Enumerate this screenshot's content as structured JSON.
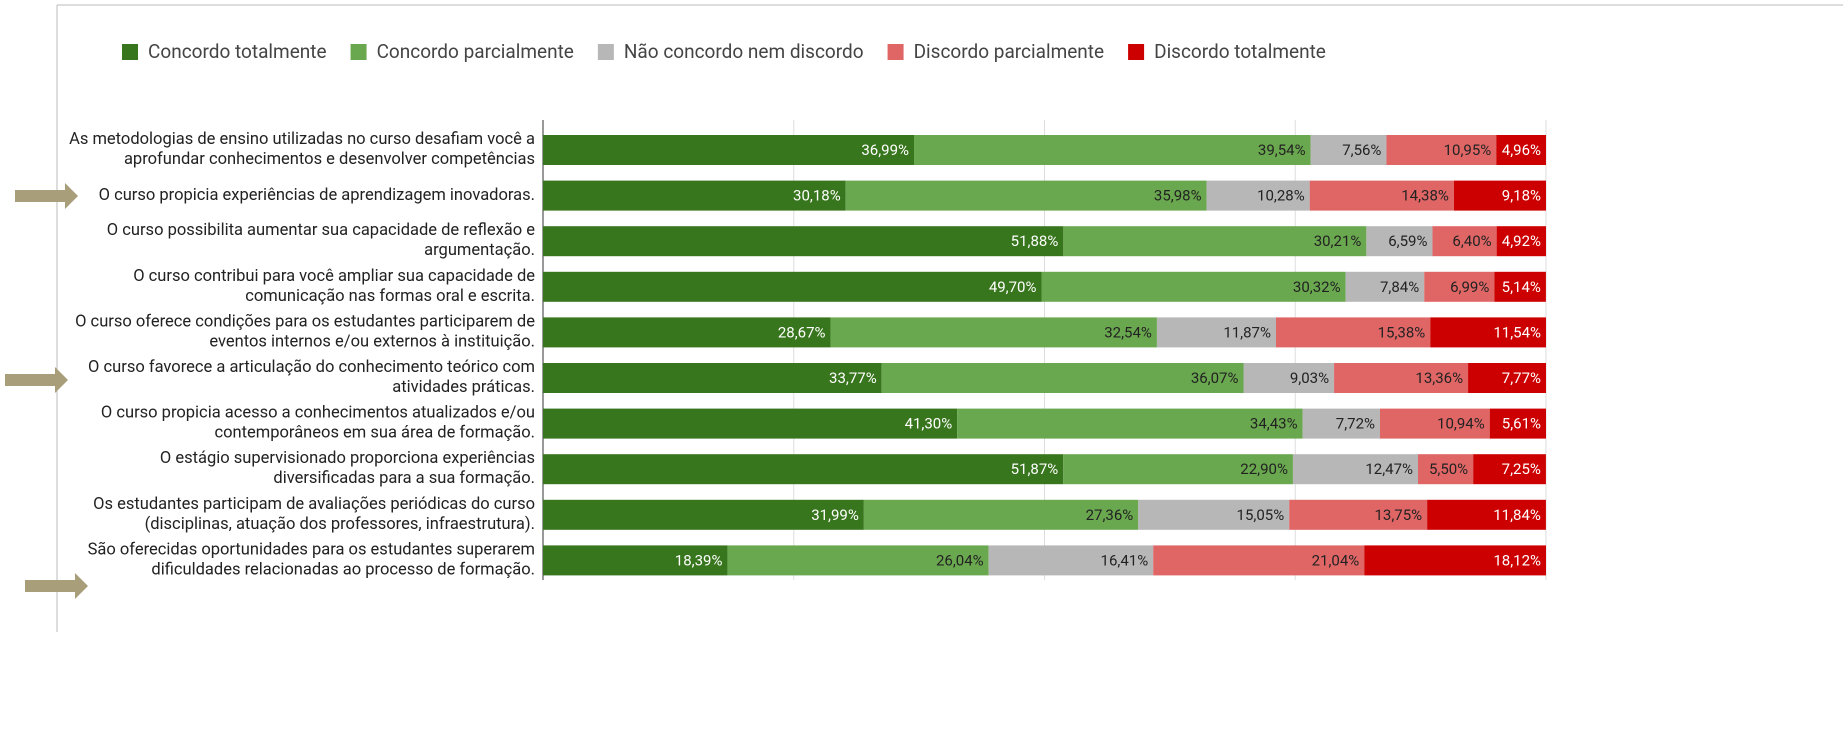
{
  "chart_data": {
    "type": "bar",
    "orientation": "horizontal",
    "stacked": true,
    "categories": [
      "As metodologias de ensino utilizadas no curso desafiam você a\naprofundar conhecimentos e desenvolver competências",
      "O curso propicia experiências de aprendizagem inovadoras.",
      "O curso possibilita aumentar sua capacidade de reflexão e\nargumentação.",
      "O curso contribui para você ampliar sua capacidade de\ncomunicação nas formas oral e escrita.",
      "O curso oferece condições para os estudantes participarem de\neventos internos e/ou externos à instituição.",
      "O curso favorece a articulação do conhecimento teórico com\natividades práticas.",
      "O curso propicia acesso a conhecimentos atualizados e/ou\ncontemporâneos em sua área de formação.",
      "O estágio supervisionado proporciona experiências\ndiversificadas para a sua formação.",
      "Os estudantes participam de avaliações periódicas do curso\n(disciplinas, atuação dos professores, infraestrutura).",
      "São oferecidas oportunidades para os estudantes superarem\ndificuldades relacionadas ao processo de formação."
    ],
    "series": [
      {
        "name": "Concordo totalmente",
        "color": "#38761d",
        "values": [
          36.99,
          30.18,
          51.88,
          49.7,
          28.67,
          33.77,
          41.3,
          51.87,
          31.99,
          18.39
        ],
        "value_labels": [
          "36,99%",
          "30,18%",
          "51,88%",
          "49,70%",
          "28,67%",
          "33,77%",
          "41,30%",
          "51,87%",
          "31,99%",
          "18,39%"
        ]
      },
      {
        "name": "Concordo parcialmente",
        "color": "#6aa84f",
        "values": [
          39.54,
          35.98,
          30.21,
          30.32,
          32.54,
          36.07,
          34.43,
          22.9,
          27.36,
          26.04
        ],
        "value_labels": [
          "39,54%",
          "35,98%",
          "30,21%",
          "30,32%",
          "32,54%",
          "36,07%",
          "34,43%",
          "22,90%",
          "27,36%",
          "26,04%"
        ]
      },
      {
        "name": "Não concordo nem discordo",
        "color": "#b7b7b7",
        "values": [
          7.56,
          10.28,
          6.59,
          7.84,
          11.87,
          9.03,
          7.72,
          12.47,
          15.05,
          16.41
        ],
        "value_labels": [
          "7,56%",
          "10,28%",
          "6,59%",
          "7,84%",
          "11,87%",
          "9,03%",
          "7,72%",
          "12,47%",
          "15,05%",
          "16,41%"
        ]
      },
      {
        "name": "Discordo parcialmente",
        "color": "#e06666",
        "values": [
          10.95,
          14.38,
          6.4,
          6.99,
          15.38,
          13.36,
          10.94,
          5.5,
          13.75,
          21.04
        ],
        "value_labels": [
          "10,95%",
          "14,38%",
          "6,40%",
          "6,99%",
          "15,38%",
          "13,36%",
          "10,94%",
          "5,50%",
          "13,75%",
          "21,04%"
        ]
      },
      {
        "name": "Discordo totalmente",
        "color": "#cc0000",
        "values": [
          4.96,
          9.18,
          4.92,
          5.14,
          11.54,
          7.77,
          5.61,
          7.25,
          11.84,
          18.12
        ],
        "value_labels": [
          "4,96%",
          "9,18%",
          "4,92%",
          "5,14%",
          "11,54%",
          "7,77%",
          "5,61%",
          "7,25%",
          "11,84%",
          "18,12%"
        ]
      }
    ],
    "xlim": [
      0,
      100
    ],
    "xticks": [
      0,
      25,
      50,
      75,
      100
    ],
    "grid": true,
    "legend": "top"
  }
}
